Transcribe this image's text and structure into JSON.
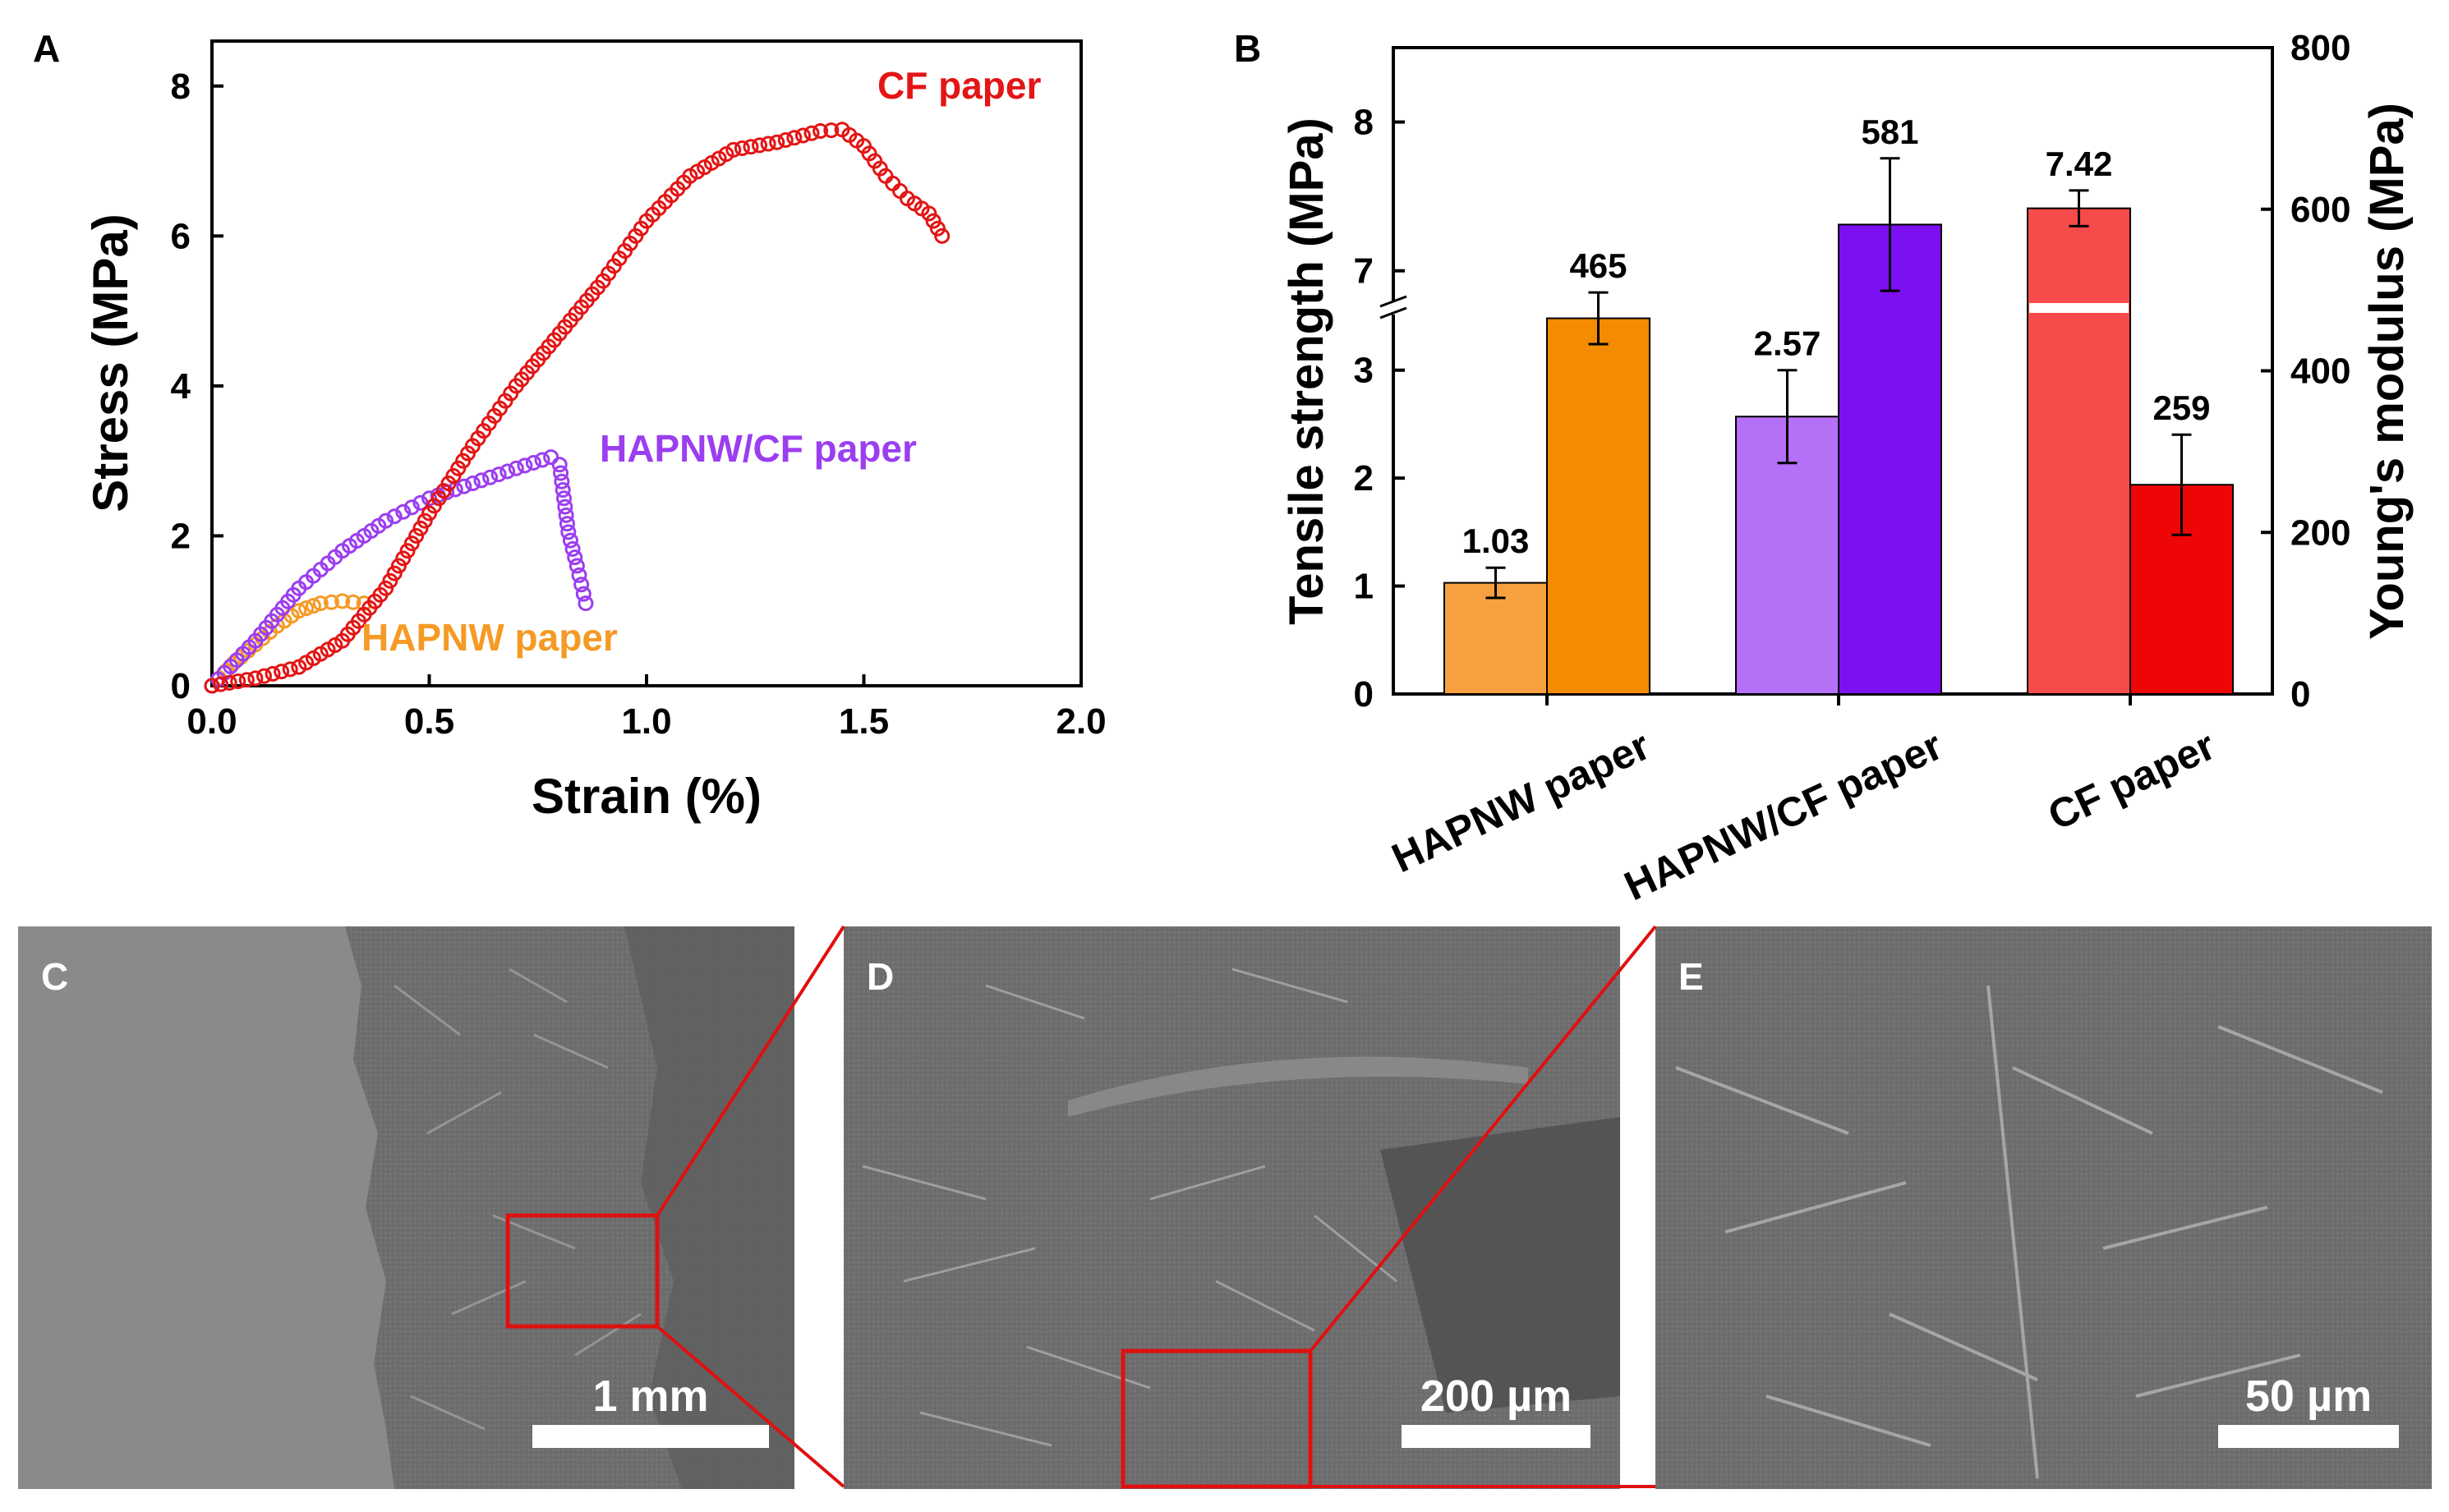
{
  "panel_labels": {
    "a": "A",
    "b": "B",
    "c": "C",
    "d": "D",
    "e": "E"
  },
  "colors": {
    "hapnw_ts": "#f7a040",
    "hapnw_ym": "#f58b00",
    "mix_ts": "#b66ff7",
    "mix_ym": "#7d10f0",
    "cf_ts": "#f74a4a",
    "cf_ym": "#ee0505",
    "cf_curve": "#e31515",
    "mix_curve": "#9b3ef0",
    "hap_curve": "#f59a25"
  },
  "chart_data": [
    {
      "id": "A",
      "type": "scatter",
      "xlabel": "Strain (%)",
      "ylabel": "Stress (MPa)",
      "xlim": [
        0,
        2.0
      ],
      "ylim": [
        0,
        8.6
      ],
      "xticks": [
        "0.0",
        "0.5",
        "1.0",
        "1.5",
        "2.0"
      ],
      "yticks": [
        "0",
        "2",
        "4",
        "6",
        "8"
      ],
      "series": [
        {
          "name": "CF paper",
          "label": "CF paper",
          "points": [
            [
              0,
              0
            ],
            [
              0.1,
              0.1
            ],
            [
              0.2,
              0.25
            ],
            [
              0.3,
              0.6
            ],
            [
              0.4,
              1.3
            ],
            [
              0.5,
              2.3
            ],
            [
              0.6,
              3.2
            ],
            [
              0.7,
              4.0
            ],
            [
              0.8,
              4.7
            ],
            [
              0.9,
              5.4
            ],
            [
              1.0,
              6.2
            ],
            [
              1.1,
              6.8
            ],
            [
              1.2,
              7.15
            ],
            [
              1.3,
              7.25
            ],
            [
              1.4,
              7.4
            ],
            [
              1.45,
              7.42
            ],
            [
              1.5,
              7.2
            ],
            [
              1.55,
              6.8
            ],
            [
              1.6,
              6.5
            ],
            [
              1.65,
              6.3
            ],
            [
              1.68,
              6.0
            ]
          ]
        },
        {
          "name": "HAPNW/CF paper",
          "label": "HAPNW/CF paper",
          "points": [
            [
              0,
              0
            ],
            [
              0.1,
              0.6
            ],
            [
              0.2,
              1.3
            ],
            [
              0.3,
              1.8
            ],
            [
              0.4,
              2.2
            ],
            [
              0.5,
              2.5
            ],
            [
              0.6,
              2.7
            ],
            [
              0.7,
              2.9
            ],
            [
              0.78,
              3.05
            ],
            [
              0.8,
              2.95
            ],
            [
              0.81,
              2.5
            ],
            [
              0.82,
              2.05
            ],
            [
              0.84,
              1.6
            ],
            [
              0.86,
              1.1
            ]
          ]
        },
        {
          "name": "HAPNW paper",
          "label": "HAPNW paper",
          "points": [
            [
              0,
              0
            ],
            [
              0.05,
              0.3
            ],
            [
              0.1,
              0.55
            ],
            [
              0.15,
              0.8
            ],
            [
              0.2,
              1.0
            ],
            [
              0.25,
              1.1
            ],
            [
              0.3,
              1.13
            ],
            [
              0.35,
              1.1
            ]
          ]
        }
      ]
    },
    {
      "id": "B",
      "type": "bar",
      "categories": [
        "HAPNW paper",
        "HAPNW/CF paper",
        "CF paper"
      ],
      "ylabel_left": "Tensile strength (MPa)",
      "ylabel_right": "Young's modulus (MPa)",
      "left_axis_broken": true,
      "left_lower_range": [
        0,
        3.5
      ],
      "left_upper_range": [
        6.75,
        8.5
      ],
      "left_ticks": [
        "0",
        "1",
        "2",
        "3",
        "7",
        "8"
      ],
      "right_range": [
        0,
        800
      ],
      "right_ticks": [
        "0",
        "200",
        "400",
        "600",
        "800"
      ],
      "series": [
        {
          "name": "Tensile strength",
          "values": [
            1.03,
            2.57,
            7.42
          ],
          "errors": [
            0.14,
            0.43,
            0.12
          ],
          "labels": [
            "1.03",
            "2.57",
            "7.42"
          ]
        },
        {
          "name": "Young's modulus",
          "values": [
            465,
            581,
            259
          ],
          "errors": [
            32,
            82,
            62
          ],
          "labels": [
            "465",
            "581",
            "259"
          ]
        }
      ]
    }
  ],
  "images": {
    "c_scale": "1 mm",
    "d_scale": "200 µm",
    "e_scale": "50 µm"
  }
}
